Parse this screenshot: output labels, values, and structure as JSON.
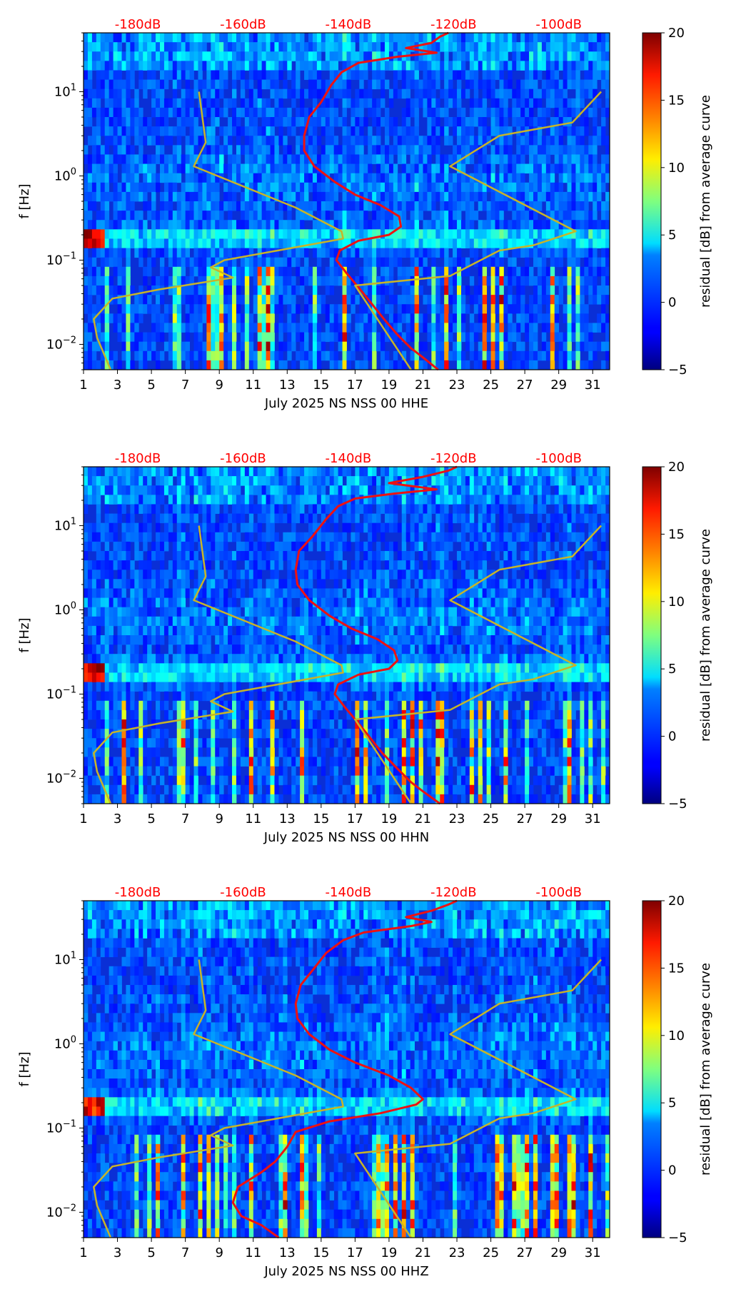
{
  "chart_data": [
    {
      "type": "heatmap",
      "title": "",
      "xlabel": "July 2025 NS NSS 00 HHE",
      "ylabel": "f [Hz]",
      "x_ticks": [
        "1",
        "3",
        "5",
        "7",
        "9",
        "11",
        "13",
        "15",
        "17",
        "19",
        "21",
        "23",
        "25",
        "27",
        "29",
        "31"
      ],
      "x_range": [
        1,
        32
      ],
      "y_scale": "log",
      "y_range": [
        0.005,
        50
      ],
      "y_ticks": [
        {
          "base": "10",
          "exp": "−2",
          "value": 0.01
        },
        {
          "base": "10",
          "exp": "−1",
          "value": 0.1
        },
        {
          "base": "10",
          "exp": "0",
          "value": 1
        },
        {
          "base": "10",
          "exp": "1",
          "value": 10
        }
      ],
      "top_axis_labels": [
        "-180dB",
        "-160dB",
        "-140dB",
        "-120dB",
        "-100dB"
      ],
      "colorbar": {
        "label": "residual [dB] from average curve",
        "range": [
          -5,
          20
        ],
        "ticks": [
          "−5",
          "0",
          "5",
          "10",
          "15",
          "20"
        ],
        "colormap": "jet"
      },
      "mean_psd_curve": {
        "color": "#ee1111",
        "points": [
          [
            21.9,
            0.005
          ],
          [
            21,
            0.007
          ],
          [
            20.3,
            0.009
          ],
          [
            19.5,
            0.013
          ],
          [
            18.7,
            0.02
          ],
          [
            18,
            0.03
          ],
          [
            17.3,
            0.045
          ],
          [
            16.5,
            0.07
          ],
          [
            15.9,
            0.1
          ],
          [
            16.1,
            0.13
          ],
          [
            17.2,
            0.17
          ],
          [
            19,
            0.2
          ],
          [
            19.7,
            0.25
          ],
          [
            19.6,
            0.33
          ],
          [
            18.5,
            0.45
          ],
          [
            17,
            0.6
          ],
          [
            15.8,
            0.85
          ],
          [
            14.6,
            1.3
          ],
          [
            14,
            2
          ],
          [
            14,
            3
          ],
          [
            14.3,
            5
          ],
          [
            15,
            7.5
          ],
          [
            15.6,
            12
          ],
          [
            16.2,
            17
          ],
          [
            17.2,
            22
          ],
          [
            19.5,
            26
          ],
          [
            21.8,
            29
          ],
          [
            20,
            33
          ],
          [
            21.5,
            38
          ],
          [
            22,
            45
          ],
          [
            22.5,
            50
          ]
        ]
      },
      "model_curve": {
        "color": "#c8b428",
        "points": [
          [
            2.6,
            0.005
          ],
          [
            1.8,
            0.012
          ],
          [
            1.6,
            0.02
          ],
          [
            2.7,
            0.035
          ],
          [
            5.5,
            0.045
          ],
          [
            9.8,
            0.062
          ],
          [
            8.5,
            0.082
          ],
          [
            9.3,
            0.1
          ],
          [
            16.3,
            0.18
          ],
          [
            16.2,
            0.22
          ],
          [
            13.5,
            0.42
          ],
          [
            7.5,
            1.3
          ],
          [
            8.2,
            2.5
          ],
          [
            7.8,
            10
          ]
        ]
      },
      "right_curve": {
        "color": "#c8b428",
        "points": [
          [
            20.3,
            0.005
          ],
          [
            17,
            0.05
          ],
          [
            22.6,
            0.065
          ],
          [
            25.5,
            0.13
          ],
          [
            27.5,
            0.15
          ],
          [
            30,
            0.22
          ],
          [
            22.6,
            1.3
          ],
          [
            25.5,
            3.0
          ],
          [
            29.8,
            4.3
          ],
          [
            31.5,
            10
          ]
        ]
      },
      "noise_seed": 11
    },
    {
      "type": "heatmap",
      "title": "",
      "xlabel": "July 2025 NS NSS 00 HHN",
      "ylabel": "f [Hz]",
      "x_ticks": [
        "1",
        "3",
        "5",
        "7",
        "9",
        "11",
        "13",
        "15",
        "17",
        "19",
        "21",
        "23",
        "25",
        "27",
        "29",
        "31"
      ],
      "x_range": [
        1,
        32
      ],
      "y_scale": "log",
      "y_range": [
        0.005,
        50
      ],
      "y_ticks": [
        {
          "base": "10",
          "exp": "−2",
          "value": 0.01
        },
        {
          "base": "10",
          "exp": "−1",
          "value": 0.1
        },
        {
          "base": "10",
          "exp": "0",
          "value": 1
        },
        {
          "base": "10",
          "exp": "1",
          "value": 10
        }
      ],
      "top_axis_labels": [
        "-180dB",
        "-160dB",
        "-140dB",
        "-120dB",
        "-100dB"
      ],
      "colorbar": {
        "label": "residual [dB] from average curve",
        "range": [
          -5,
          20
        ],
        "ticks": [
          "−5",
          "0",
          "5",
          "10",
          "15",
          "20"
        ],
        "colormap": "jet"
      },
      "mean_psd_curve": {
        "color": "#ee1111",
        "points": [
          [
            22,
            0.005
          ],
          [
            21,
            0.007
          ],
          [
            20.3,
            0.009
          ],
          [
            19.5,
            0.013
          ],
          [
            18.6,
            0.02
          ],
          [
            17.9,
            0.03
          ],
          [
            17.2,
            0.045
          ],
          [
            16.4,
            0.07
          ],
          [
            15.8,
            0.1
          ],
          [
            16,
            0.13
          ],
          [
            17.2,
            0.17
          ],
          [
            19,
            0.2
          ],
          [
            19.5,
            0.25
          ],
          [
            19.3,
            0.33
          ],
          [
            18.3,
            0.45
          ],
          [
            16.8,
            0.6
          ],
          [
            15.5,
            0.85
          ],
          [
            14.3,
            1.3
          ],
          [
            13.6,
            2
          ],
          [
            13.5,
            3
          ],
          [
            13.7,
            5
          ],
          [
            14.5,
            7.5
          ],
          [
            15.3,
            12
          ],
          [
            16,
            17
          ],
          [
            17,
            21
          ],
          [
            19.3,
            24
          ],
          [
            21.8,
            27
          ],
          [
            19,
            32
          ],
          [
            21,
            38
          ],
          [
            22.5,
            45
          ],
          [
            23,
            50
          ]
        ]
      },
      "model_curve": {
        "color": "#c8b428",
        "points": [
          [
            2.6,
            0.005
          ],
          [
            1.8,
            0.012
          ],
          [
            1.6,
            0.02
          ],
          [
            2.7,
            0.035
          ],
          [
            5.5,
            0.045
          ],
          [
            9.8,
            0.062
          ],
          [
            8.5,
            0.082
          ],
          [
            9.3,
            0.1
          ],
          [
            16.3,
            0.18
          ],
          [
            16.2,
            0.22
          ],
          [
            13.5,
            0.42
          ],
          [
            7.5,
            1.3
          ],
          [
            8.2,
            2.5
          ],
          [
            7.8,
            10
          ]
        ]
      },
      "right_curve": {
        "color": "#c8b428",
        "points": [
          [
            20.3,
            0.005
          ],
          [
            17,
            0.05
          ],
          [
            22.6,
            0.065
          ],
          [
            25.5,
            0.13
          ],
          [
            27.5,
            0.15
          ],
          [
            30,
            0.22
          ],
          [
            22.6,
            1.3
          ],
          [
            25.5,
            3.0
          ],
          [
            29.8,
            4.3
          ],
          [
            31.5,
            10
          ]
        ]
      },
      "noise_seed": 23
    },
    {
      "type": "heatmap",
      "title": "",
      "xlabel": "July 2025 NS NSS 00 HHZ",
      "ylabel": "f [Hz]",
      "x_ticks": [
        "1",
        "3",
        "5",
        "7",
        "9",
        "11",
        "13",
        "15",
        "17",
        "19",
        "21",
        "23",
        "25",
        "27",
        "29",
        "31"
      ],
      "x_range": [
        1,
        32
      ],
      "y_scale": "log",
      "y_range": [
        0.005,
        50
      ],
      "y_ticks": [
        {
          "base": "10",
          "exp": "−2",
          "value": 0.01
        },
        {
          "base": "10",
          "exp": "−1",
          "value": 0.1
        },
        {
          "base": "10",
          "exp": "0",
          "value": 1
        },
        {
          "base": "10",
          "exp": "1",
          "value": 10
        }
      ],
      "top_axis_labels": [
        "-180dB",
        "-160dB",
        "-140dB",
        "-120dB",
        "-100dB"
      ],
      "colorbar": {
        "label": "residual [dB] from average curve",
        "range": [
          -5,
          20
        ],
        "ticks": [
          "−5",
          "0",
          "5",
          "10",
          "15",
          "20"
        ],
        "colormap": "jet"
      },
      "mean_psd_curve": {
        "color": "#ee1111",
        "points": [
          [
            12.5,
            0.005
          ],
          [
            11.5,
            0.007
          ],
          [
            10.3,
            0.009
          ],
          [
            9.8,
            0.013
          ],
          [
            10.1,
            0.02
          ],
          [
            11.5,
            0.03
          ],
          [
            12.3,
            0.04
          ],
          [
            13,
            0.06
          ],
          [
            13.5,
            0.09
          ],
          [
            15.5,
            0.12
          ],
          [
            18.5,
            0.15
          ],
          [
            20.6,
            0.19
          ],
          [
            21,
            0.22
          ],
          [
            20.3,
            0.3
          ],
          [
            19,
            0.42
          ],
          [
            17,
            0.6
          ],
          [
            15.5,
            0.85
          ],
          [
            14.3,
            1.3
          ],
          [
            13.6,
            2
          ],
          [
            13.5,
            3
          ],
          [
            13.8,
            5
          ],
          [
            14.5,
            7.5
          ],
          [
            15.3,
            12
          ],
          [
            16.3,
            17
          ],
          [
            17.5,
            21
          ],
          [
            20.3,
            25
          ],
          [
            21.5,
            28
          ],
          [
            20,
            32
          ],
          [
            21.5,
            38
          ],
          [
            22.5,
            45
          ],
          [
            23,
            50
          ]
        ]
      },
      "model_curve": {
        "color": "#c8b428",
        "points": [
          [
            2.6,
            0.005
          ],
          [
            1.8,
            0.012
          ],
          [
            1.6,
            0.02
          ],
          [
            2.7,
            0.035
          ],
          [
            5.5,
            0.045
          ],
          [
            9.8,
            0.062
          ],
          [
            8.5,
            0.082
          ],
          [
            9.3,
            0.1
          ],
          [
            16.3,
            0.18
          ],
          [
            16.2,
            0.22
          ],
          [
            13.5,
            0.42
          ],
          [
            7.5,
            1.3
          ],
          [
            8.2,
            2.5
          ],
          [
            7.8,
            10
          ]
        ]
      },
      "right_curve": {
        "color": "#c8b428",
        "points": [
          [
            20.3,
            0.005
          ],
          [
            17,
            0.05
          ],
          [
            22.6,
            0.065
          ],
          [
            25.5,
            0.13
          ],
          [
            27.5,
            0.15
          ],
          [
            30,
            0.22
          ],
          [
            22.6,
            1.3
          ],
          [
            25.5,
            3.0
          ],
          [
            29.8,
            4.3
          ],
          [
            31.5,
            10
          ]
        ]
      },
      "noise_seed": 37
    }
  ]
}
